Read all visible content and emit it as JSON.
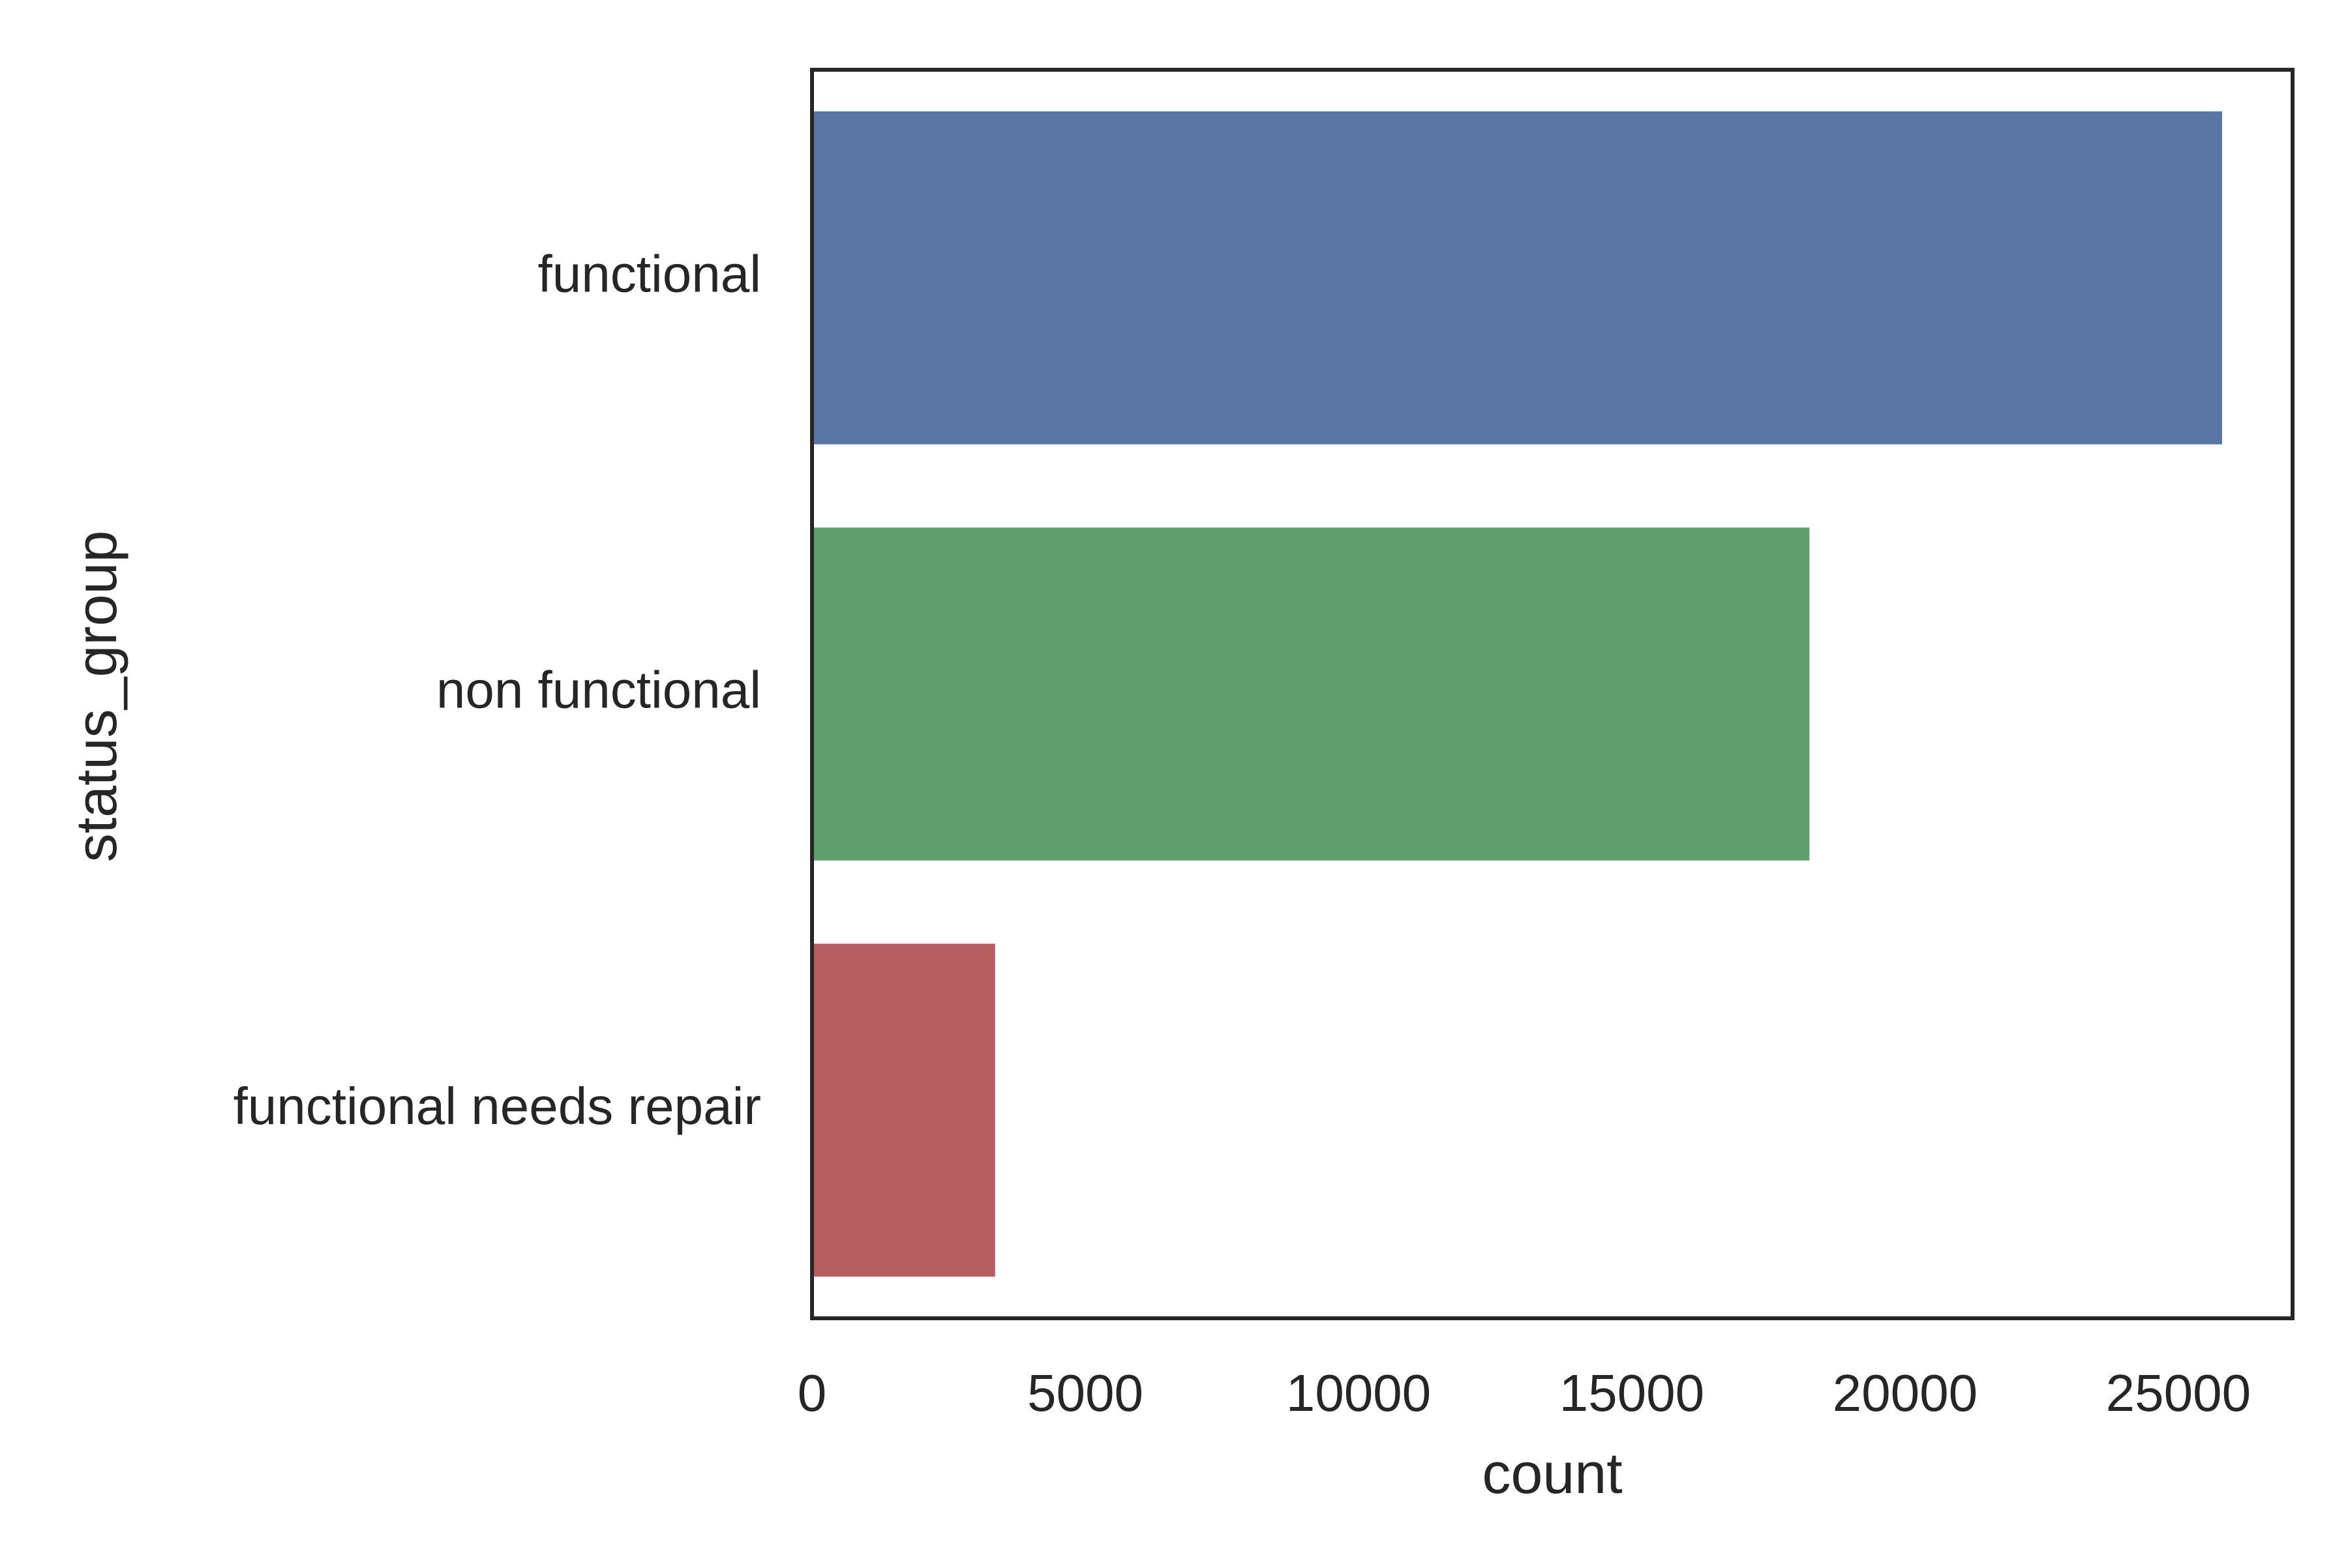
{
  "chart_data": {
    "type": "bar",
    "orientation": "horizontal",
    "title": "",
    "xlabel": "count",
    "ylabel": "status_group",
    "categories": [
      "functional",
      "non functional",
      "functional needs repair"
    ],
    "values": [
      25800,
      18250,
      3350
    ],
    "colors": [
      "#5875a4",
      "#5f9e6e",
      "#b55d60"
    ],
    "xlim": [
      0,
      27090
    ],
    "xticks": [
      0,
      5000,
      10000,
      15000,
      20000,
      25000
    ],
    "xtick_labels": [
      "0",
      "5000",
      "10000",
      "15000",
      "20000",
      "25000"
    ],
    "grid": false,
    "legend": "none"
  }
}
